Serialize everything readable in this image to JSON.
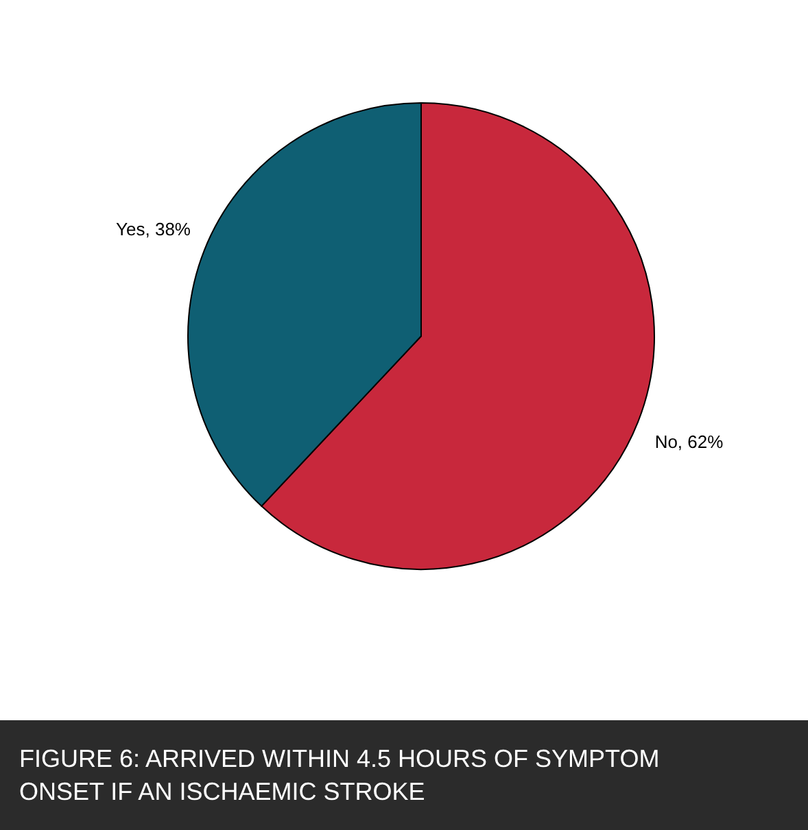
{
  "chart_data": {
    "type": "pie",
    "title": "FIGURE 6: ARRIVED WITHIN 4.5 HOURS OF SYMPTOM ONSET IF AN ISCHAEMIC STROKE",
    "categories": [
      "No",
      "Yes"
    ],
    "values": [
      62,
      38
    ],
    "colors": [
      "#c8283c",
      "#0f5f73"
    ],
    "value_labels": [
      "62%",
      "38%"
    ]
  }
}
